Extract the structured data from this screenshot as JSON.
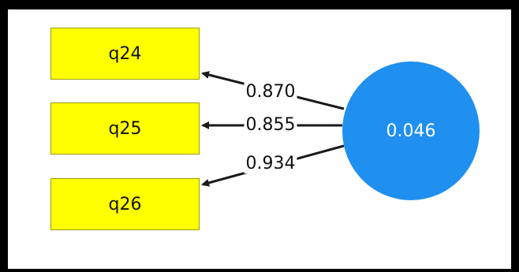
{
  "diagram": {
    "indicators": [
      {
        "label": "q24"
      },
      {
        "label": "q25"
      },
      {
        "label": "q26"
      }
    ],
    "loadings": [
      "0.870",
      "0.855",
      "0.934"
    ],
    "construct": {
      "value": "0.046"
    },
    "colors": {
      "indicator_fill": "#ffff00",
      "construct_fill": "#1f8ff0",
      "arrow": "#1a1a1a",
      "frame": "#000000"
    }
  }
}
